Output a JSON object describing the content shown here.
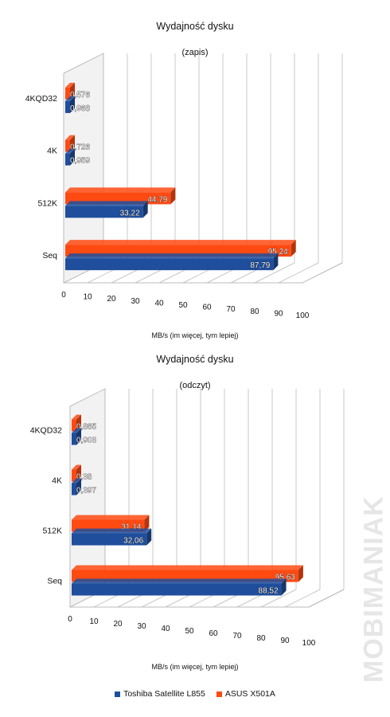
{
  "colors": {
    "toshiba": "#1f4e9c",
    "asus": "#ff4a12",
    "grid": "#c8c8c8"
  },
  "legend": {
    "toshiba": "Toshiba Satellite L855",
    "asus": "ASUS X501A"
  },
  "watermark": "MOBIMANIAK",
  "chart_data": [
    {
      "type": "bar",
      "orientation": "horizontal-3d",
      "title": "Wydajność dysku",
      "subtitle": "(zapis)",
      "xlabel": "MB/s (im więcej, tym lepiej)",
      "xlim": [
        0,
        100
      ],
      "xticks": [
        "0",
        "10",
        "20",
        "30",
        "40",
        "50",
        "60",
        "70",
        "80",
        "90",
        "100"
      ],
      "categories": [
        "4KQD32",
        "4K",
        "512K",
        "Seq"
      ],
      "series": [
        {
          "name": "ASUS X501A",
          "values": [
            0.576,
            0.726,
            44.79,
            95.24
          ],
          "labels": [
            "0,576",
            "0,726",
            "44,79",
            "95,24"
          ]
        },
        {
          "name": "Toshiba Satellite L855",
          "values": [
            0.968,
            0.959,
            33.22,
            87.79
          ],
          "labels": [
            "0,968",
            "0,959",
            "33,22",
            "87,79"
          ]
        }
      ],
      "grid": true,
      "legend": "bottom"
    },
    {
      "type": "bar",
      "orientation": "horizontal-3d",
      "title": "Wydajność dysku",
      "subtitle": "(odczyt)",
      "xlabel": "MB/s (im więcej, tym lepiej)",
      "xlim": [
        0,
        100
      ],
      "xticks": [
        "0",
        "10",
        "20",
        "30",
        "40",
        "50",
        "60",
        "70",
        "80",
        "90",
        "100"
      ],
      "categories": [
        "4KQD32",
        "4K",
        "512K",
        "Seq"
      ],
      "series": [
        {
          "name": "ASUS X501A",
          "values": [
            0.865,
            0.38,
            31.14,
            95.63
          ],
          "labels": [
            "0,865",
            "0,38",
            "31,14",
            "95,63"
          ]
        },
        {
          "name": "Toshiba Satellite L855",
          "values": [
            0.903,
            0.397,
            32.06,
            88.52
          ],
          "labels": [
            "0,903",
            "0,397",
            "32,06",
            "88,52"
          ]
        }
      ],
      "grid": true,
      "legend": "bottom"
    }
  ]
}
